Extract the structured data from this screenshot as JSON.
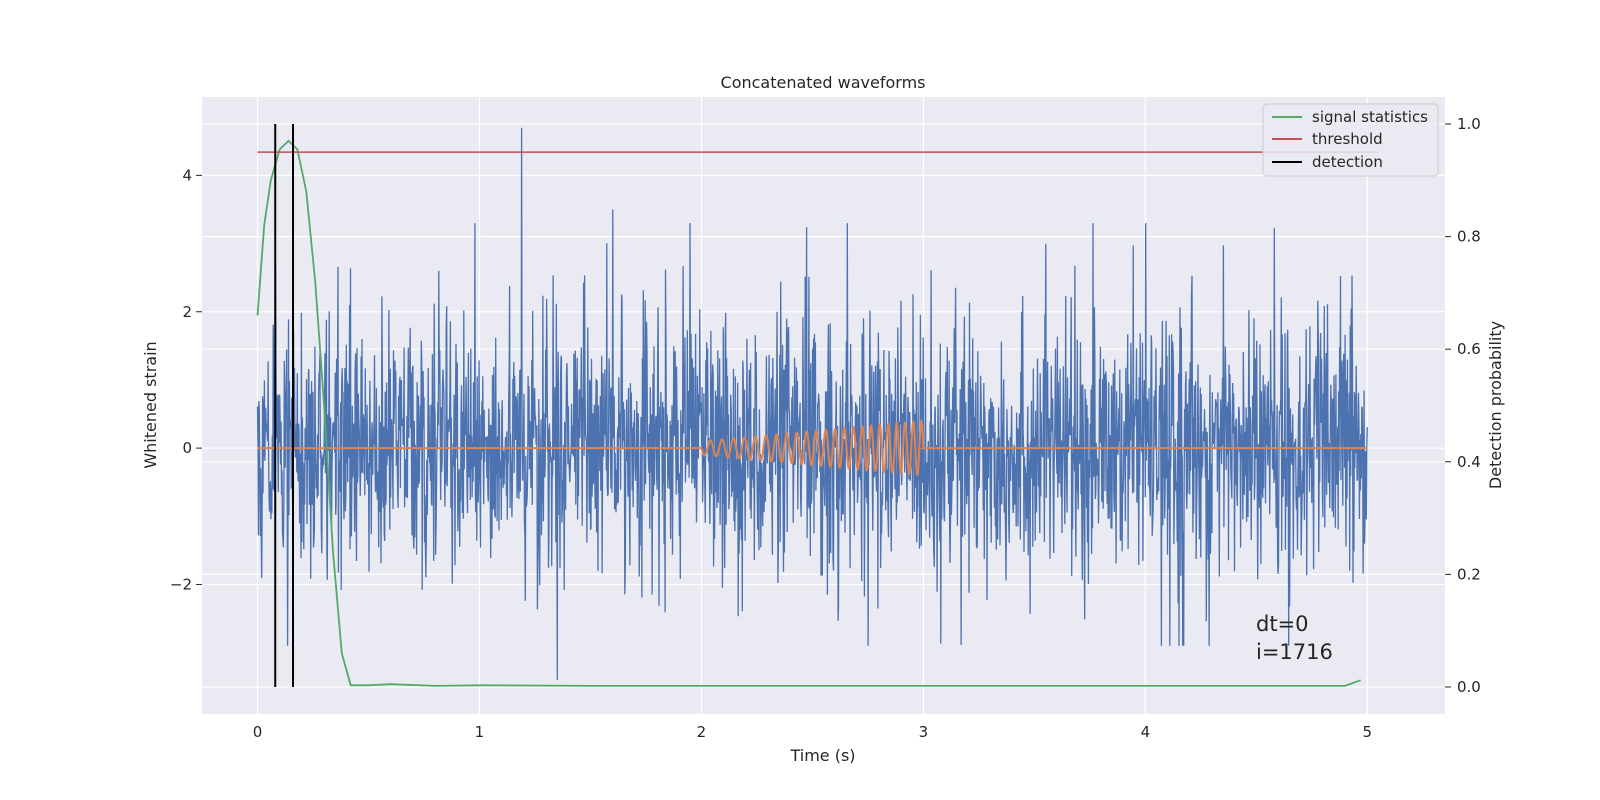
{
  "chart_data": {
    "type": "line",
    "title": "Concatenated waveforms",
    "xlabel": "Time (s)",
    "ylabel": "Whitened strain",
    "ylabel_right": "Detection probability",
    "xlim": [
      -0.25,
      5.35
    ],
    "ylim": [
      -3.9,
      5.15
    ],
    "ylim_right": [
      -0.048,
      1.048
    ],
    "x_ticks": [
      0,
      1,
      2,
      3,
      4,
      5
    ],
    "y_ticks": [
      -2,
      0,
      2,
      4
    ],
    "y_ticks_right": [
      0.0,
      0.2,
      0.4,
      0.6,
      0.8,
      1.0
    ],
    "x_tick_labels": [
      "0",
      "1",
      "2",
      "3",
      "4",
      "5"
    ],
    "y_tick_labels": [
      "−2",
      "0",
      "2",
      "4"
    ],
    "y_tick_labels_right": [
      "0.0",
      "0.2",
      "0.4",
      "0.6",
      "0.8",
      "1.0"
    ],
    "grid": true,
    "legend_position": "top-right",
    "annotations": [
      "dt=0",
      "i=1716"
    ],
    "colors": {
      "strain": "#4c72b0",
      "injected": "#dd8452",
      "signal_statistics": "#55a868",
      "threshold": "#c44e52",
      "detection": "#000000",
      "axes_bg": "#eaeaf2"
    },
    "series": [
      {
        "name": "",
        "axis": "left",
        "description_kind": "noise",
        "x_range": [
          0,
          5
        ],
        "envelope": [
          -3.4,
          4.7
        ],
        "notable_points": [
          {
            "x": 1.19,
            "y": 4.7
          },
          {
            "x": 1.35,
            "y": -3.4
          },
          {
            "x": 1.6,
            "y": 3.5
          },
          {
            "x": 0.98,
            "y": 3.3
          }
        ]
      },
      {
        "name": "",
        "axis": "left",
        "description_kind": "chirp",
        "x_range": [
          2.0,
          3.0
        ],
        "amplitude_start": 0.1,
        "amplitude_end": 0.4,
        "cycles": 23
      },
      {
        "name": "signal statistics",
        "axis": "right",
        "x": [
          0,
          0.03,
          0.06,
          0.1,
          0.14,
          0.18,
          0.22,
          0.26,
          0.3,
          0.34,
          0.38,
          0.42,
          0.5,
          0.6,
          0.8,
          1.0,
          1.5,
          2.0,
          3.0,
          4.0,
          4.9,
          4.97
        ],
        "values": [
          0.66,
          0.82,
          0.9,
          0.955,
          0.97,
          0.955,
          0.88,
          0.72,
          0.5,
          0.24,
          0.06,
          0.003,
          0.003,
          0.005,
          0.002,
          0.003,
          0.002,
          0.002,
          0.002,
          0.002,
          0.002,
          0.012
        ]
      },
      {
        "name": "threshold",
        "axis": "right",
        "x": [
          0,
          5.05
        ],
        "values": [
          0.95,
          0.95
        ]
      },
      {
        "name": "detection",
        "axis": "right",
        "x": [
          0.08,
          0.16
        ],
        "values": [
          [
            0.0,
            1.0
          ],
          [
            0.0,
            1.0
          ]
        ]
      }
    ],
    "legend": [
      "signal statistics",
      "threshold",
      "detection"
    ]
  }
}
